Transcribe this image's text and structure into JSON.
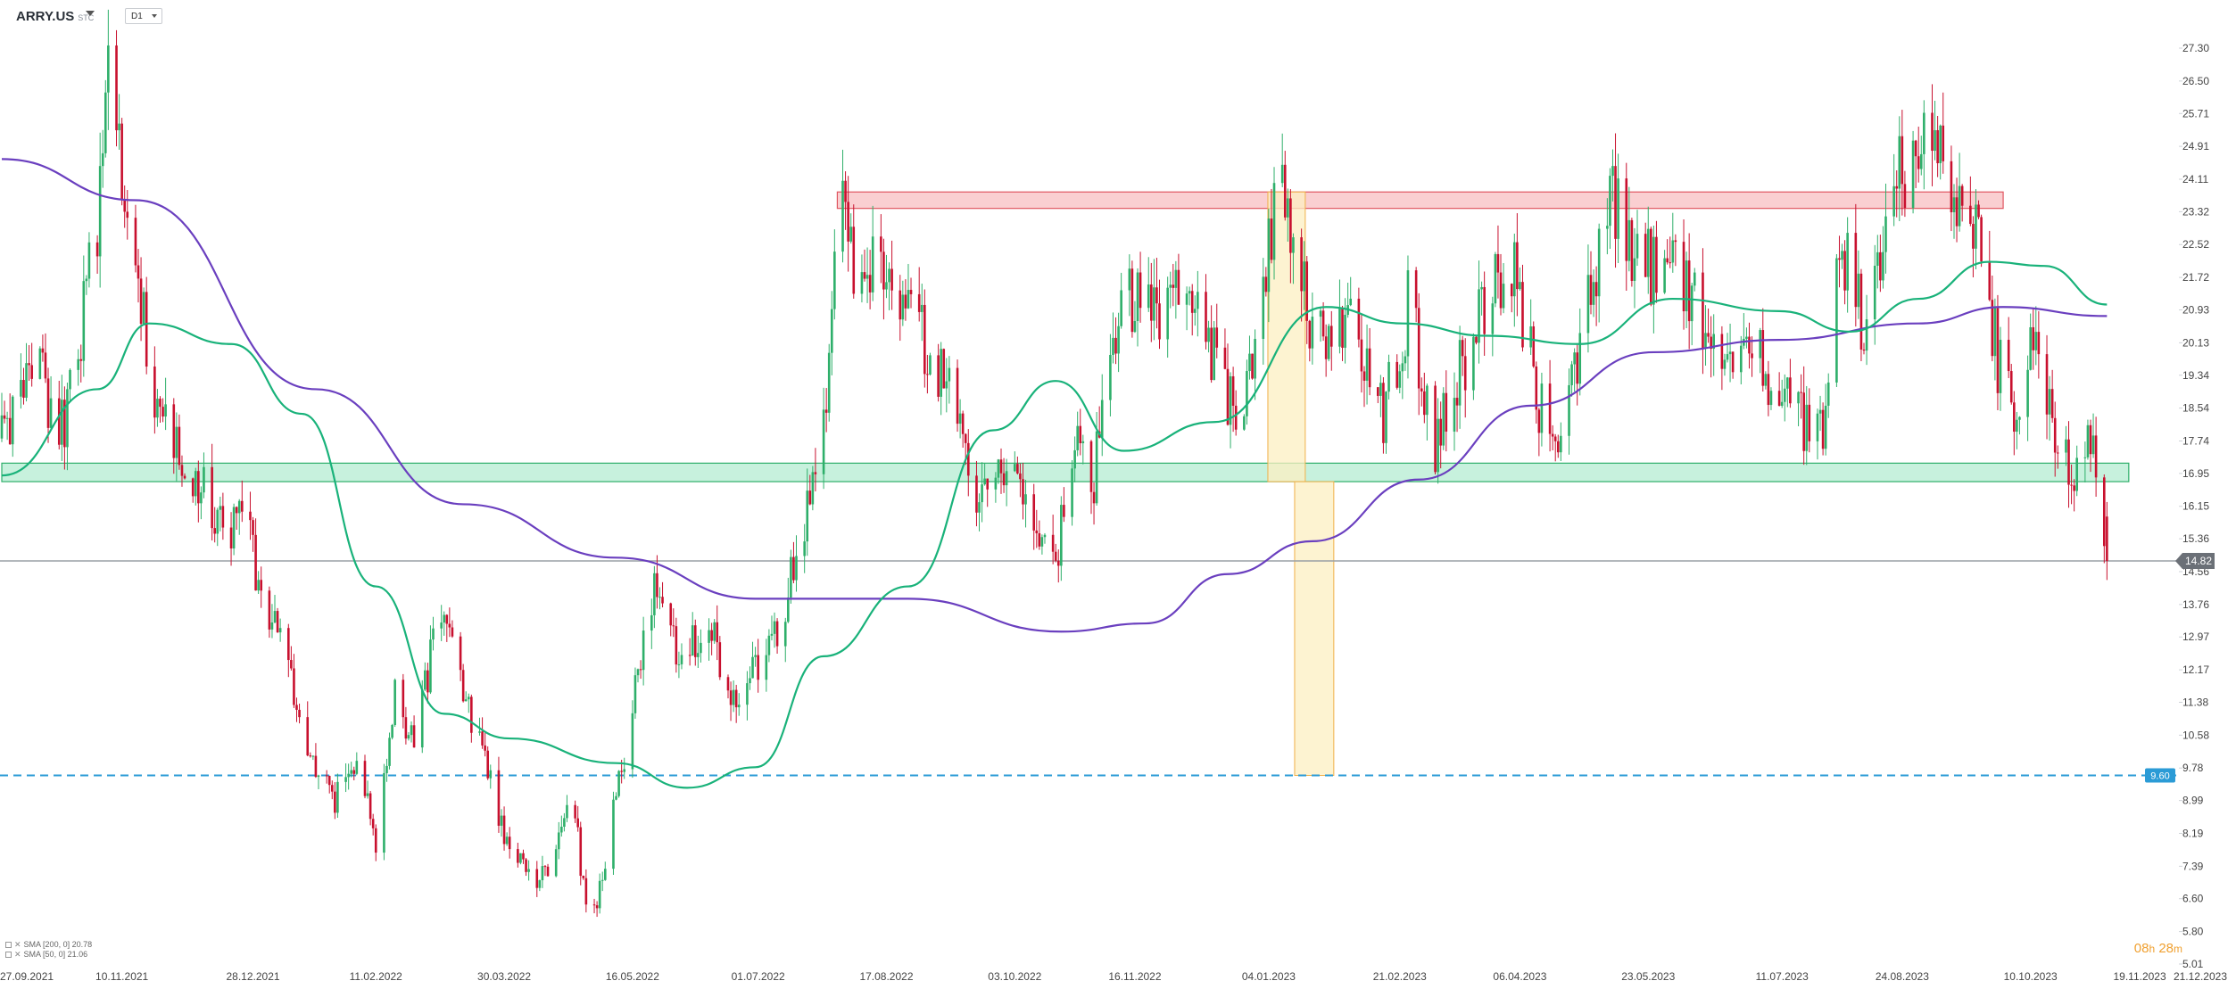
{
  "header": {
    "symbol": "ARRY.US",
    "symbol_sub": "STC",
    "timeframe": "D1"
  },
  "legend": [
    {
      "text": "SMA [200, 0] 20.78"
    },
    {
      "text": "SMA [50, 0] 21.06"
    }
  ],
  "timer": {
    "hours": "08",
    "h_unit": "h",
    "minutes": "28",
    "m_unit": "m"
  },
  "colors": {
    "up": "#2eaf6a",
    "down": "#c8102e",
    "sma200": "#6a3fbf",
    "sma50": "#19b27a",
    "resistance_fill": "#f9c7c9",
    "resistance_border": "#e05560",
    "support_fill": "#bdeed7",
    "support_border": "#2eaf6a",
    "measure_fill": "#fcefc2",
    "measure_border": "#f0b04a",
    "target_line": "#2b9bd6",
    "price_line": "#9aa0a6"
  },
  "chart_data": {
    "type": "candlestick",
    "symbol": "ARRY.US",
    "timeframe": "D1",
    "x_start": "2021-09-27",
    "x_end": "2023-12-21",
    "ylim": [
      5.01,
      27.3
    ],
    "y_ticks": [
      "27.30",
      "26.50",
      "25.71",
      "24.91",
      "24.11",
      "23.32",
      "22.52",
      "21.72",
      "20.93",
      "20.13",
      "19.34",
      "18.54",
      "17.74",
      "16.95",
      "16.15",
      "15.36",
      "14.56",
      "13.76",
      "12.97",
      "12.17",
      "11.38",
      "10.58",
      "9.78",
      "8.99",
      "8.19",
      "7.39",
      "6.60",
      "5.80",
      "5.01"
    ],
    "x_tick_labels": [
      "27.09.2021",
      "10.11.2021",
      "28.12.2021",
      "11.02.2022",
      "30.03.2022",
      "16.05.2022",
      "01.07.2022",
      "17.08.2022",
      "03.10.2022",
      "16.11.2022",
      "04.01.2023",
      "21.02.2023",
      "06.04.2023",
      "23.05.2023",
      "11.07.2023",
      "24.08.2023",
      "10.10.2023",
      "19.11.2023",
      "21.12.2023"
    ],
    "close_path": [
      [
        "2021-09-27",
        17.8
      ],
      [
        "2021-10-10",
        19.3
      ],
      [
        "2021-10-20",
        18.2
      ],
      [
        "2021-11-01",
        22.8
      ],
      [
        "2021-11-05",
        26.8
      ],
      [
        "2021-11-09",
        24.9
      ],
      [
        "2021-11-15",
        22.9
      ],
      [
        "2021-11-22",
        18.2
      ],
      [
        "2021-12-01",
        17.5
      ],
      [
        "2021-12-10",
        16.6
      ],
      [
        "2021-12-17",
        15.4
      ],
      [
        "2021-12-24",
        16.2
      ],
      [
        "2022-01-01",
        13.8
      ],
      [
        "2022-01-10",
        12.1
      ],
      [
        "2022-01-18",
        10.1
      ],
      [
        "2022-01-27",
        9.1
      ],
      [
        "2022-02-05",
        9.6
      ],
      [
        "2022-02-11",
        8.0
      ],
      [
        "2022-02-18",
        11.6
      ],
      [
        "2022-02-25",
        10.3
      ],
      [
        "2022-03-06",
        13.6
      ],
      [
        "2022-03-15",
        11.6
      ],
      [
        "2022-03-23",
        9.8
      ],
      [
        "2022-03-30",
        8.3
      ],
      [
        "2022-04-10",
        6.9
      ],
      [
        "2022-04-18",
        7.6
      ],
      [
        "2022-04-24",
        9.2
      ],
      [
        "2022-04-30",
        5.7
      ],
      [
        "2022-05-05",
        7.3
      ],
      [
        "2022-05-16",
        11.2
      ],
      [
        "2022-05-25",
        14.4
      ],
      [
        "2022-06-03",
        12.1
      ],
      [
        "2022-06-12",
        13.7
      ],
      [
        "2022-06-20",
        11.2
      ],
      [
        "2022-06-30",
        12.1
      ],
      [
        "2022-07-09",
        13.4
      ],
      [
        "2022-07-15",
        14.8
      ],
      [
        "2022-07-25",
        17.9
      ],
      [
        "2022-07-30",
        23.6
      ],
      [
        "2022-08-07",
        21.4
      ],
      [
        "2022-08-17",
        22.3
      ],
      [
        "2022-08-30",
        20.3
      ],
      [
        "2022-09-12",
        18.6
      ],
      [
        "2022-09-20",
        16.3
      ],
      [
        "2022-09-30",
        17.4
      ],
      [
        "2022-10-12",
        15.3
      ],
      [
        "2022-10-18",
        14.8
      ],
      [
        "2022-10-25",
        17.5
      ],
      [
        "2022-11-01",
        16.8
      ],
      [
        "2022-11-08",
        20.2
      ],
      [
        "2022-11-18",
        21.6
      ],
      [
        "2022-11-26",
        20.6
      ],
      [
        "2022-12-05",
        22.1
      ],
      [
        "2022-12-15",
        19.8
      ],
      [
        "2022-12-25",
        18.1
      ],
      [
        "2023-01-02",
        22.0
      ],
      [
        "2023-01-08",
        23.8
      ],
      [
        "2023-01-15",
        21.6
      ],
      [
        "2023-01-25",
        19.8
      ],
      [
        "2023-02-05",
        20.5
      ],
      [
        "2023-02-15",
        18.4
      ],
      [
        "2023-02-25",
        21.3
      ],
      [
        "2023-03-05",
        17.3
      ],
      [
        "2023-03-15",
        19.4
      ],
      [
        "2023-03-25",
        21.2
      ],
      [
        "2023-04-04",
        21.7
      ],
      [
        "2023-04-14",
        18.4
      ],
      [
        "2023-04-22",
        18.1
      ],
      [
        "2023-05-01",
        21.5
      ],
      [
        "2023-05-10",
        23.5
      ],
      [
        "2023-05-20",
        21.8
      ],
      [
        "2023-05-30",
        22.3
      ],
      [
        "2023-06-08",
        21.2
      ],
      [
        "2023-06-18",
        20.1
      ],
      [
        "2023-06-28",
        20.4
      ],
      [
        "2023-07-05",
        19.4
      ],
      [
        "2023-07-15",
        18.6
      ],
      [
        "2023-07-25",
        17.7
      ],
      [
        "2023-08-02",
        22.5
      ],
      [
        "2023-08-10",
        20.4
      ],
      [
        "2023-08-20",
        23.6
      ],
      [
        "2023-08-28",
        24.9
      ],
      [
        "2023-09-05",
        26.0
      ],
      [
        "2023-09-12",
        23.3
      ],
      [
        "2023-09-20",
        23.5
      ],
      [
        "2023-09-28",
        19.6
      ],
      [
        "2023-10-06",
        18.1
      ],
      [
        "2023-10-12",
        20.9
      ],
      [
        "2023-10-20",
        17.3
      ],
      [
        "2023-10-28",
        16.7
      ],
      [
        "2023-11-02",
        17.9
      ],
      [
        "2023-11-07",
        14.82
      ]
    ],
    "series": [
      {
        "name": "SMA [200, 0]",
        "last": 20.78,
        "points": [
          [
            "2021-09-27",
            24.6
          ],
          [
            "2021-11-15",
            23.6
          ],
          [
            "2022-01-20",
            19.0
          ],
          [
            "2022-03-15",
            16.2
          ],
          [
            "2022-05-10",
            14.9
          ],
          [
            "2022-06-30",
            13.9
          ],
          [
            "2022-08-25",
            13.9
          ],
          [
            "2022-10-20",
            13.1
          ],
          [
            "2022-11-20",
            13.3
          ],
          [
            "2022-12-20",
            14.5
          ],
          [
            "2023-01-20",
            15.3
          ],
          [
            "2023-02-28",
            16.8
          ],
          [
            "2023-04-10",
            18.6
          ],
          [
            "2023-05-25",
            19.9
          ],
          [
            "2023-07-10",
            20.2
          ],
          [
            "2023-08-30",
            20.6
          ],
          [
            "2023-09-30",
            21.0
          ],
          [
            "2023-11-07",
            20.78
          ]
        ]
      },
      {
        "name": "SMA [50, 0]",
        "last": 21.06,
        "points": [
          [
            "2021-09-27",
            16.9
          ],
          [
            "2021-11-01",
            19.0
          ],
          [
            "2021-11-20",
            20.6
          ],
          [
            "2021-12-20",
            20.1
          ],
          [
            "2022-01-15",
            18.4
          ],
          [
            "2022-02-11",
            14.2
          ],
          [
            "2022-03-08",
            11.1
          ],
          [
            "2022-04-01",
            10.5
          ],
          [
            "2022-05-10",
            9.9
          ],
          [
            "2022-06-05",
            9.3
          ],
          [
            "2022-06-30",
            9.8
          ],
          [
            "2022-07-25",
            12.5
          ],
          [
            "2022-08-25",
            14.2
          ],
          [
            "2022-09-25",
            18.0
          ],
          [
            "2022-10-18",
            19.2
          ],
          [
            "2022-11-12",
            17.5
          ],
          [
            "2022-12-15",
            18.2
          ],
          [
            "2023-01-25",
            21.0
          ],
          [
            "2023-02-22",
            20.6
          ],
          [
            "2023-03-25",
            20.3
          ],
          [
            "2023-04-28",
            20.1
          ],
          [
            "2023-06-01",
            21.2
          ],
          [
            "2023-07-10",
            20.9
          ],
          [
            "2023-08-05",
            20.4
          ],
          [
            "2023-08-30",
            21.2
          ],
          [
            "2023-09-25",
            22.1
          ],
          [
            "2023-10-15",
            22.0
          ],
          [
            "2023-11-07",
            21.06
          ]
        ]
      }
    ],
    "annotations": {
      "resistance_zone": {
        "from": "2022-07-30",
        "to": "2023-09-30",
        "y_low": 23.4,
        "y_high": 23.8
      },
      "support_zone": {
        "from": "2021-09-27",
        "to": "2023-11-15",
        "y_low": 16.75,
        "y_high": 17.2
      },
      "measured_move": {
        "from": "2023-01-05",
        "to": "2023-01-20",
        "y_top": 23.8,
        "y_mid": 16.75,
        "y_bottom": 9.6
      },
      "target_line": {
        "value": 9.6,
        "label": "9.60"
      },
      "last_price": {
        "value": 14.82,
        "label": "14.82"
      }
    },
    "grid": false
  }
}
